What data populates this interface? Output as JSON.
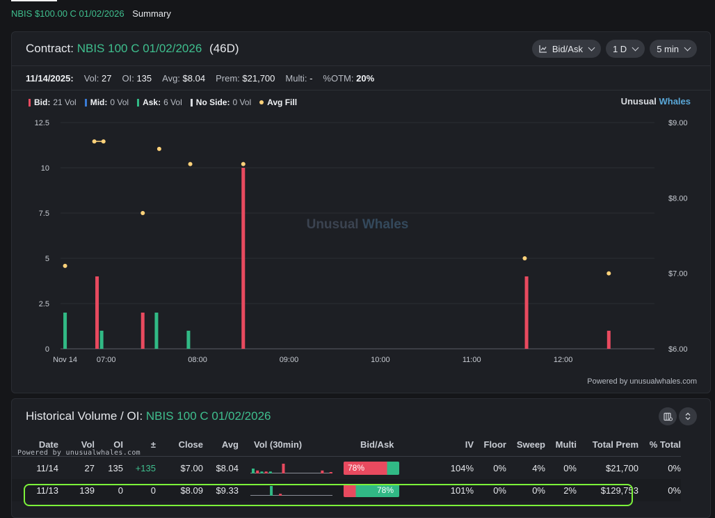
{
  "breadcrumb": {
    "link": "NBIS $100.00 C 01/02/2026",
    "current": "Summary"
  },
  "contract": {
    "title_label": "Contract:",
    "title_symbol": "NBIS 100 C 01/02/2026",
    "days": "(46D)",
    "controls": [
      {
        "label": "Bid/Ask",
        "icon": "line-chart-icon"
      },
      {
        "label": "1 D"
      },
      {
        "label": "5 min"
      }
    ],
    "stats": {
      "date": "11/14/2025:",
      "vol_label": "Vol:",
      "vol": "27",
      "oi_label": "OI:",
      "oi": "135",
      "avg_label": "Avg:",
      "avg": "$8.04",
      "prem_label": "Prem:",
      "prem": "$21,700",
      "multi_label": "Multi:",
      "multi": "-",
      "otm_label": "%OTM:",
      "otm": "20%"
    },
    "legend": [
      {
        "name": "Bid:",
        "value": "21 Vol",
        "color": "#e84a5f"
      },
      {
        "name": "Mid:",
        "value": "0 Vol",
        "color": "#3a7bd5"
      },
      {
        "name": "Ask:",
        "value": "6 Vol",
        "color": "#31b985"
      },
      {
        "name": "No Side:",
        "value": "0 Vol",
        "color": "#d8dbe0"
      },
      {
        "name": "Avg Fill",
        "value": "",
        "color": "#ffd27a"
      }
    ],
    "brand_a": "Unusual",
    "brand_b": "Whales",
    "powered": "Powered by unusualwhales.com"
  },
  "chart_data": {
    "type": "bar",
    "watermark": [
      "Unusual",
      "Whales"
    ],
    "x_ticks": [
      "Nov 14",
      "07:00",
      "08:00",
      "09:00",
      "10:00",
      "11:00",
      "12:00"
    ],
    "x_tick_hours": [
      6.55,
      7.0,
      8.0,
      9.0,
      10.0,
      11.0,
      12.0
    ],
    "x_range_hours": [
      6.5,
      13.0
    ],
    "ylim_left": [
      0,
      12.5
    ],
    "y_ticks_left": [
      "0",
      "2.5",
      "5",
      "7.5",
      "10",
      "12.5"
    ],
    "ylim_right": [
      6.0,
      9.0
    ],
    "y_ticks_right": [
      "$6.00",
      "$7.00",
      "$8.00",
      "$9.00"
    ],
    "grid": true,
    "series": [
      {
        "name": "Bid",
        "color": "#e84a5f",
        "points": [
          [
            6.9,
            4
          ],
          [
            7.4,
            2
          ],
          [
            8.5,
            10
          ],
          [
            11.6,
            4
          ],
          [
            12.5,
            1
          ]
        ]
      },
      {
        "name": "Ask",
        "color": "#31b985",
        "points": [
          [
            6.55,
            2
          ],
          [
            6.95,
            1
          ],
          [
            7.55,
            2
          ],
          [
            7.9,
            1
          ]
        ]
      },
      {
        "name": "Avg Fill",
        "color": "#ffd27a",
        "kind": "dots",
        "points": [
          [
            6.55,
            7.1
          ],
          [
            6.87,
            8.75
          ],
          [
            6.97,
            8.75
          ],
          [
            7.4,
            7.8
          ],
          [
            7.58,
            8.65
          ],
          [
            7.92,
            8.45
          ],
          [
            8.5,
            8.45
          ],
          [
            11.58,
            7.2
          ],
          [
            12.5,
            7.0
          ]
        ]
      }
    ]
  },
  "history": {
    "title_label": "Historical Volume / OI:",
    "title_symbol": "NBIS 100 C 01/02/2026",
    "powered": "Powered by unusualwhales.com",
    "columns": [
      "Date",
      "Vol",
      "OI",
      "±",
      "Close",
      "Avg",
      "Vol (30min)",
      "Bid/Ask",
      "IV",
      "Floor",
      "Sweep",
      "Multi",
      "Total Prem",
      "% Total"
    ],
    "rows": [
      {
        "date": "11/14",
        "vol": "27",
        "oi": "135",
        "chg": "+135",
        "close": "$7.00",
        "avg": "$8.04",
        "spark": [
          {
            "s": "a",
            "v": 0.5
          },
          {
            "s": "b",
            "v": 0.3
          },
          {
            "s": "a",
            "v": 0.2
          },
          {
            "s": "b",
            "v": 0.2
          },
          {
            "s": "a",
            "v": 0.2
          },
          {
            "s": "b",
            "v": 0.0
          },
          {
            "s": "b",
            "v": 0.0
          },
          {
            "s": "b",
            "v": 1.0
          },
          {
            "s": "b",
            "v": 0
          },
          {
            "s": "b",
            "v": 0
          },
          {
            "s": "b",
            "v": 0
          },
          {
            "s": "b",
            "v": 0
          },
          {
            "s": "b",
            "v": 0
          },
          {
            "s": "b",
            "v": 0
          },
          {
            "s": "b",
            "v": 0
          },
          {
            "s": "b",
            "v": 0
          },
          {
            "s": "b",
            "v": 0.3
          },
          {
            "s": "b",
            "v": 0
          },
          {
            "s": "b",
            "v": 0.1
          }
        ],
        "bid_pct": 0.78,
        "ba_label": "78%",
        "ba_side": "bid",
        "iv": "104%",
        "floor": "0%",
        "sweep": "4%",
        "multi": "0%",
        "total": "$21,700",
        "pct": "0%"
      },
      {
        "date": "11/13",
        "vol": "139",
        "oi": "0",
        "chg": "0",
        "close": "$8.09",
        "avg": "$9.33",
        "spark": [
          {
            "s": "a",
            "v": 0
          },
          {
            "s": "a",
            "v": 0
          },
          {
            "s": "a",
            "v": 1.0
          },
          {
            "s": "b",
            "v": 0.2
          },
          {
            "s": "a",
            "v": 0
          }
        ],
        "bid_pct": 0.22,
        "ba_label": "78%",
        "ba_side": "ask",
        "iv": "101%",
        "floor": "0%",
        "sweep": "0%",
        "multi": "2%",
        "total": "$129,753",
        "pct": "0%"
      }
    ]
  }
}
